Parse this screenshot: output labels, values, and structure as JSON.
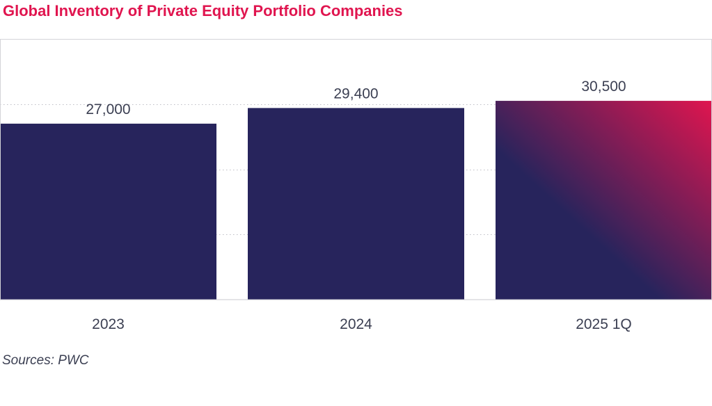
{
  "title": "Global Inventory of Private Equity Portfolio Companies",
  "source": "Sources: PWC",
  "colors": {
    "title": "#e0154f",
    "bar": "#27245c",
    "highlight_end": "#e0154f",
    "text": "#3b3f52"
  },
  "chart_data": {
    "type": "bar",
    "title": "Global Inventory of Private Equity Portfolio Companies",
    "xlabel": "",
    "ylabel": "",
    "categories": [
      "2023",
      "2024",
      "2025 1Q"
    ],
    "values": [
      27000,
      29400,
      30500
    ],
    "data_labels": [
      "27,000",
      "29,400",
      "30,500"
    ],
    "ylim": [
      0,
      40000
    ],
    "grid": true,
    "legend": "none",
    "highlighted_category": "2025 1Q"
  }
}
